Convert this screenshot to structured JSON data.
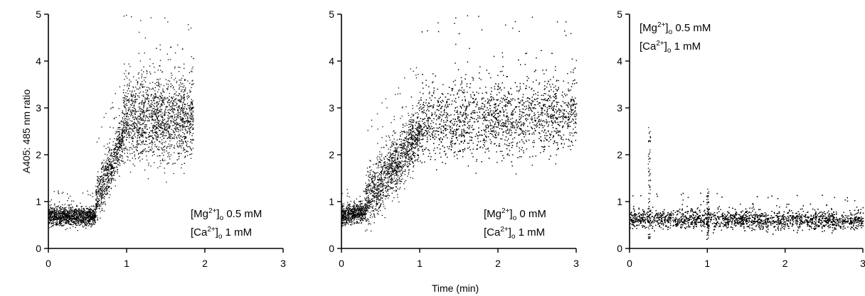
{
  "figure": {
    "shared_xlabel": "Time (min)",
    "shared_ylabel": "A405: 485 nm ratio"
  },
  "chart_data": [
    {
      "type": "scatter",
      "xlim": [
        0,
        3
      ],
      "ylim": [
        0,
        5
      ],
      "xticks": [
        "0",
        "1",
        "2",
        "3"
      ],
      "yticks": [
        "0",
        "1",
        "2",
        "3",
        "4",
        "5"
      ],
      "grid": false,
      "conditions": [
        {
          "ion": "Mg",
          "charge": "2+",
          "sub": "o",
          "value": "0.5 mM"
        },
        {
          "ion": "Ca",
          "charge": "2+",
          "sub": "o",
          "value": "1 mM"
        }
      ],
      "annotation_position": "bottom-right",
      "segments": [
        {
          "x": [
            0.0,
            0.6
          ],
          "y_center": [
            0.7,
            0.7
          ],
          "spread": 0.2
        },
        {
          "x": [
            0.6,
            0.95
          ],
          "y_center": [
            1.0,
            2.4
          ],
          "spread": 0.5
        },
        {
          "x": [
            0.95,
            1.85
          ],
          "y_center": [
            2.8,
            2.8
          ],
          "spread": 0.9
        }
      ]
    },
    {
      "type": "scatter",
      "xlim": [
        0,
        3
      ],
      "ylim": [
        0,
        5
      ],
      "xticks": [
        "0",
        "1",
        "2",
        "3"
      ],
      "yticks": [
        "0",
        "1",
        "2",
        "3",
        "4",
        "5"
      ],
      "grid": false,
      "conditions": [
        {
          "ion": "Mg",
          "charge": "2+",
          "sub": "o",
          "value": "0 mM"
        },
        {
          "ion": "Ca",
          "charge": "2+",
          "sub": "o",
          "value": "1 mM"
        }
      ],
      "annotation_position": "bottom-right",
      "segments": [
        {
          "x": [
            0.0,
            0.3
          ],
          "y_center": [
            0.7,
            0.8
          ],
          "spread": 0.2
        },
        {
          "x": [
            0.3,
            1.0
          ],
          "y_center": [
            1.0,
            2.5
          ],
          "spread": 0.6
        },
        {
          "x": [
            1.0,
            3.0
          ],
          "y_center": [
            2.7,
            2.9
          ],
          "spread": 0.8
        }
      ]
    },
    {
      "type": "scatter",
      "xlim": [
        0,
        3
      ],
      "ylim": [
        0,
        5
      ],
      "xticks": [
        "0",
        "1",
        "2",
        "3"
      ],
      "yticks": [
        "0",
        "1",
        "2",
        "3",
        "4",
        "5"
      ],
      "grid": false,
      "conditions": [
        {
          "ion": "Mg",
          "charge": "2+",
          "sub": "o",
          "value": "0.5 mM"
        },
        {
          "ion": "Ca",
          "charge": "2+",
          "sub": "o",
          "value": "1 mM"
        }
      ],
      "annotation_position": "top-left",
      "segments": [
        {
          "x": [
            0.0,
            3.0
          ],
          "y_center": [
            0.65,
            0.6
          ],
          "spread": 0.2
        }
      ],
      "spikes": [
        {
          "x": 0.25,
          "y_peak": 2.6
        },
        {
          "x": 1.0,
          "y_peak": 1.3
        }
      ]
    }
  ]
}
